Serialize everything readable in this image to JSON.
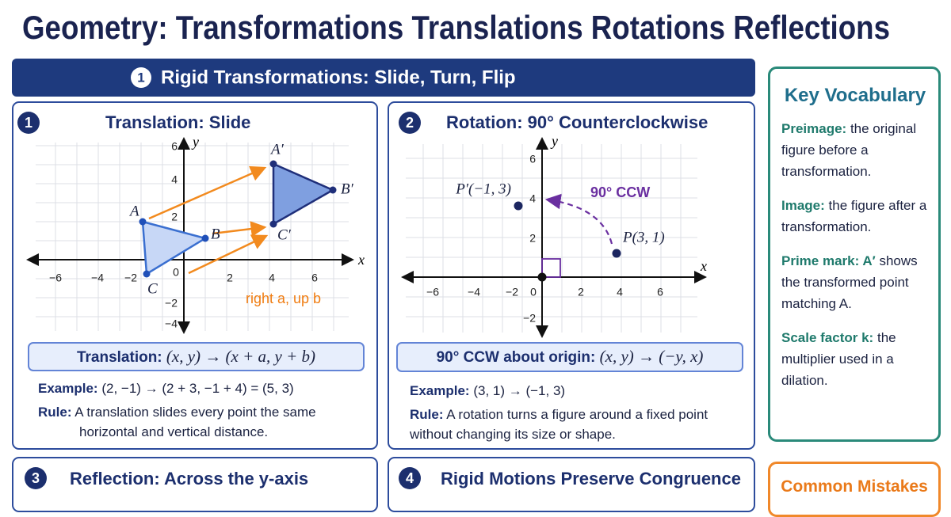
{
  "header": {
    "title": "Geometry: Transformations Translations Rotations Reflections"
  },
  "section": {
    "number": "1",
    "title": "Rigid Transformations: Slide, Turn, Flip"
  },
  "panels": [
    {
      "number": "1",
      "title": "Translation: Slide",
      "graph": {
        "x_ticks": [
          "−6",
          "−4",
          "−2",
          "0",
          "2",
          "4",
          "6"
        ],
        "y_ticks": [
          "6",
          "4",
          "2",
          "−2",
          "−4"
        ],
        "x_label": "x",
        "y_label": "y",
        "points": [
          "A",
          "B",
          "C",
          "A′",
          "B′",
          "C′"
        ],
        "annotation": "right a, up b"
      },
      "formula_label": "Translation:",
      "formula": "(x, y) → (x + a, y + b)",
      "example_label": "Example:",
      "example": "(2, −1) → (2 + 3, −1 + 4) = (5, 3)",
      "rule_label": "Rule:",
      "rule": "A translation slides every point the same horizontal and vertical distance."
    },
    {
      "number": "2",
      "title": "Rotation: 90° Counterclockwise",
      "graph": {
        "x_ticks": [
          "−6",
          "−4",
          "−2",
          "0",
          "2",
          "4",
          "6"
        ],
        "y_ticks": [
          "6",
          "4",
          "2",
          "−2"
        ],
        "x_label": "x",
        "y_label": "y",
        "points": [
          "P′(−1, 3)",
          "P(3, 1)"
        ],
        "annotation": "90° CCW"
      },
      "formula_label": "90° CCW about origin:",
      "formula": "(x, y) → (−y, x)",
      "example_label": "Example:",
      "example": "(3, 1) → (−1, 3)",
      "rule_label": "Rule:",
      "rule": "A rotation turns a figure around a fixed point without changing its size or shape."
    },
    {
      "number": "3",
      "title": "Reflection: Across the y-axis"
    },
    {
      "number": "4",
      "title": "Rigid Motions Preserve Congruence"
    }
  ],
  "sidebar": {
    "vocabulary": {
      "title": "Key Vocabulary",
      "items": [
        {
          "term": "Preimage:",
          "definition": "the original figure before a transformation."
        },
        {
          "term": "Image:",
          "definition": "the figure after a transformation."
        },
        {
          "term": "Prime mark: A′",
          "definition": "shows the transformed point matching A."
        },
        {
          "term": "Scale factor k:",
          "definition": "the multiplier used in a dilation."
        }
      ]
    },
    "mistakes": {
      "title": "Common Mistakes"
    }
  }
}
